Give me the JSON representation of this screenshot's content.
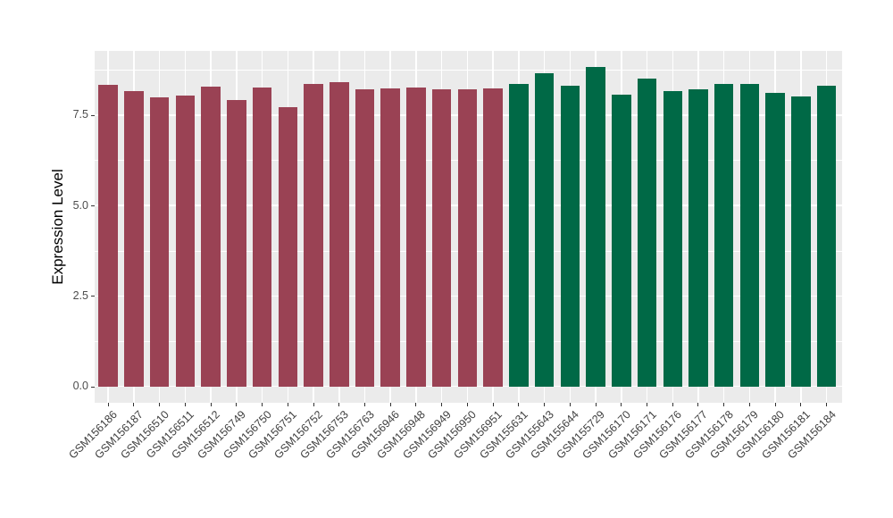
{
  "chart_data": {
    "type": "bar",
    "title": "",
    "xlabel": "",
    "ylabel": "Expression Level",
    "categories": [
      "GSM156186",
      "GSM156187",
      "GSM156510",
      "GSM156511",
      "GSM156512",
      "GSM156749",
      "GSM156750",
      "GSM156751",
      "GSM156752",
      "GSM156753",
      "GSM156763",
      "GSM156946",
      "GSM156948",
      "GSM156949",
      "GSM156950",
      "GSM156951",
      "GSM155631",
      "GSM155643",
      "GSM155644",
      "GSM155729",
      "GSM156170",
      "GSM156171",
      "GSM156176",
      "GSM156177",
      "GSM156178",
      "GSM156179",
      "GSM156180",
      "GSM156181",
      "GSM156184"
    ],
    "values": [
      8.33,
      8.16,
      7.98,
      8.04,
      8.28,
      7.91,
      8.27,
      7.72,
      8.35,
      8.41,
      8.22,
      8.24,
      8.25,
      8.2,
      8.2,
      8.23,
      8.37,
      8.65,
      8.31,
      8.82,
      8.06,
      8.51,
      8.16,
      8.2,
      8.37,
      8.37,
      8.12,
      8.01,
      8.31
    ],
    "bar_group_index": [
      0,
      0,
      0,
      0,
      0,
      0,
      0,
      0,
      0,
      0,
      0,
      0,
      0,
      0,
      0,
      0,
      1,
      1,
      1,
      1,
      1,
      1,
      1,
      1,
      1,
      1,
      1,
      1,
      1
    ],
    "group_colors": [
      "#9A4254",
      "#006946"
    ],
    "ytick_labels": [
      "0.0",
      "2.5",
      "5.0",
      "7.5"
    ],
    "ytick_values": [
      0,
      2.5,
      5,
      7.5
    ],
    "minor_ytick_values": [
      1.25,
      3.75,
      6.25,
      8.75
    ],
    "ylim": [
      0,
      9.3
    ],
    "grid": "on",
    "legend": "none",
    "panel_bg": "#EBEBEB",
    "grid_color": "#FFFFFF"
  }
}
